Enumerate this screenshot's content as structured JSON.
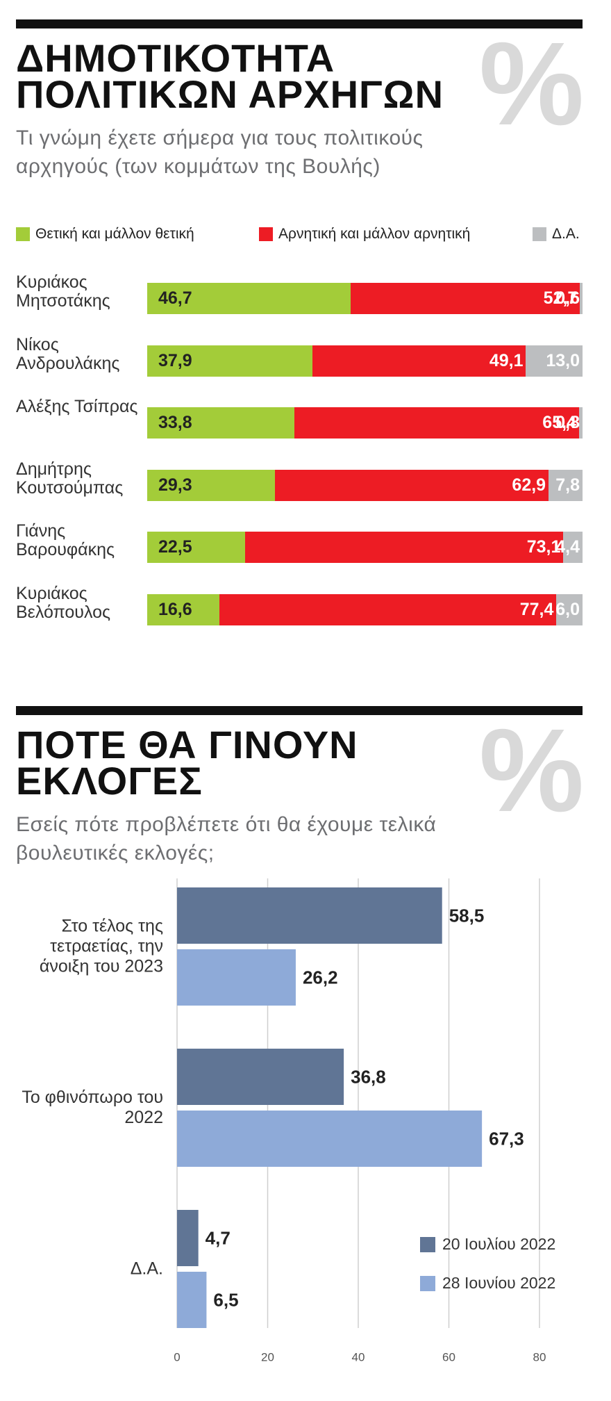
{
  "chart_data": [
    {
      "type": "stacked_bar",
      "orientation": "horizontal",
      "title": "ΔΗΜΟΤΙΚΟΤΗΤΑ ΠΟΛΙΤΙΚΩΝ ΑΡΧΗΓΩΝ",
      "symbol": "%",
      "subtitle": "Τι γνώμη έχετε σήμερα για τους πολιτικούς αρχηγούς (των κομμάτων της Βουλής)",
      "categories": [
        "Κυριάκος Μητσοτάκης",
        "Νίκος Ανδρουλάκης",
        "Αλέξης Τσίπρας",
        "Δημήτρης Κουτσούμπας",
        "Γιάνης Βαρουφάκης",
        "Κυριάκος Βελόπουλος"
      ],
      "xlim": [
        0,
        100
      ],
      "series": [
        {
          "name": "Θετική και μάλλον θετική",
          "color": "#a3cc39",
          "values": [
            46.7,
            37.9,
            33.8,
            29.3,
            22.5,
            16.6
          ],
          "value_labels": [
            "46,7",
            "37,9",
            "33,8",
            "29,3",
            "22,5",
            "16,6"
          ]
        },
        {
          "name": "Αρνητική και μάλλον αρνητική",
          "color": "#ed1c24",
          "values": [
            52.7,
            49.1,
            65.4,
            62.9,
            73.1,
            77.4
          ],
          "value_labels": [
            "52,7",
            "49,1",
            "65,4",
            "62,9",
            "73,1",
            "77,4"
          ]
        },
        {
          "name": "Δ.Α.",
          "color": "#bcbec0",
          "values": [
            0.6,
            13.0,
            0.8,
            7.8,
            4.4,
            6.0
          ],
          "value_labels": [
            "0,6",
            "13,0",
            "0,8",
            "7,8",
            "4,4",
            "6,0"
          ]
        }
      ]
    },
    {
      "type": "grouped_bar",
      "orientation": "horizontal",
      "title": "ΠΟΤΕ ΘΑ ΓΙΝΟΥΝ ΕΚΛΟΓΕΣ",
      "symbol": "%",
      "subtitle": "Εσείς πότε προβλέπετε ότι θα έχουμε τελικά βουλευτικές εκλογές;",
      "categories": [
        "Στο τέλος της τετραετίας, την άνοιξη του 2023",
        "Το φθινόπωρο του 2022",
        "Δ.Α."
      ],
      "xlim": [
        0,
        80
      ],
      "xticks": [
        0,
        20,
        40,
        60,
        80
      ],
      "grid": true,
      "legend": "lower right",
      "series": [
        {
          "name": "20 Ιουλίου 2022",
          "color": "#607595",
          "values": [
            58.5,
            36.8,
            4.7
          ],
          "value_labels": [
            "58,5",
            "36,8",
            "4,7"
          ]
        },
        {
          "name": "28 Ιουνίου 2022",
          "color": "#8eaad8",
          "values": [
            26.2,
            67.3,
            6.5
          ],
          "value_labels": [
            "26,2",
            "67,3",
            "6,5"
          ]
        }
      ]
    }
  ]
}
